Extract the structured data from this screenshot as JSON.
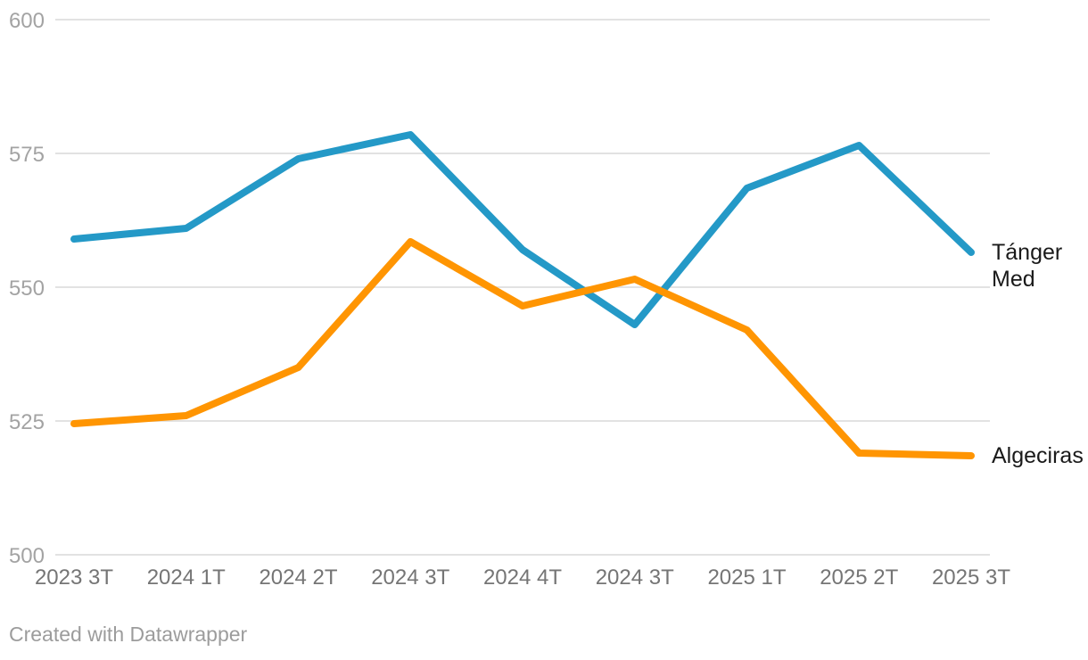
{
  "chart_data": {
    "type": "line",
    "title": "",
    "xlabel": "",
    "ylabel": "",
    "categories": [
      "2023 3T",
      "2024 1T",
      "2024 2T",
      "2024 3T",
      "2024 4T",
      "2024 3T",
      "2025 1T",
      "2025 2T",
      "2025 3T"
    ],
    "series": [
      {
        "name": "Tánger Med",
        "label_lines": [
          "Tánger",
          "Med"
        ],
        "color": "#2499c7",
        "values": [
          559,
          561,
          574,
          578.5,
          557,
          543,
          568.5,
          576.5,
          556.5
        ]
      },
      {
        "name": "Algeciras",
        "label_lines": [
          "Algeciras"
        ],
        "color": "#ff9502",
        "values": [
          524.5,
          526,
          535,
          558.5,
          546.5,
          551.5,
          542,
          519,
          518.5
        ]
      }
    ],
    "ylim": [
      500,
      600
    ],
    "yticks": [
      500,
      525,
      550,
      575,
      600
    ],
    "grid": true,
    "legend_position": "direct-labels-right"
  },
  "footer": {
    "credit": "Created with Datawrapper"
  },
  "theme": {
    "background": "#ffffff",
    "gridline_color": "#e2e2e2",
    "ytick_color": "#a3a3a3",
    "xtick_color": "#757575",
    "series_label_color": "#1a1a1a",
    "credit_color": "#9c9c9c"
  }
}
